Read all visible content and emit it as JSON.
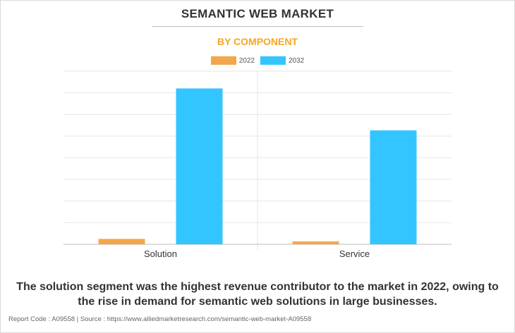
{
  "header": {
    "title": "SEMANTIC WEB MARKET",
    "subtitle": "BY COMPONENT"
  },
  "colors": {
    "series_2022": "#f5a64a",
    "series_2032": "#33c5ff",
    "subtitle": "#f5a623",
    "grid": "#e6e6e6"
  },
  "chart_data": {
    "type": "bar",
    "title": "SEMANTIC WEB MARKET",
    "subtitle": "BY COMPONENT",
    "categories": [
      "Solution",
      "Service"
    ],
    "series": [
      {
        "name": "2022",
        "values": [
          0.28,
          0.15
        ]
      },
      {
        "name": "2032",
        "values": [
          8.1,
          5.92
        ]
      }
    ],
    "ylim": [
      0,
      9
    ],
    "grid": true,
    "legend": "top-center",
    "xlabel": "",
    "ylabel": ""
  },
  "caption": "The solution segment was the highest revenue contributor to the market in 2022, owing to the rise in demand for semantic web solutions in large businesses.",
  "footer": "Report Code : A09558  |  Source : https://www.alliedmarketresearch.com/semantic-web-market-A09558"
}
